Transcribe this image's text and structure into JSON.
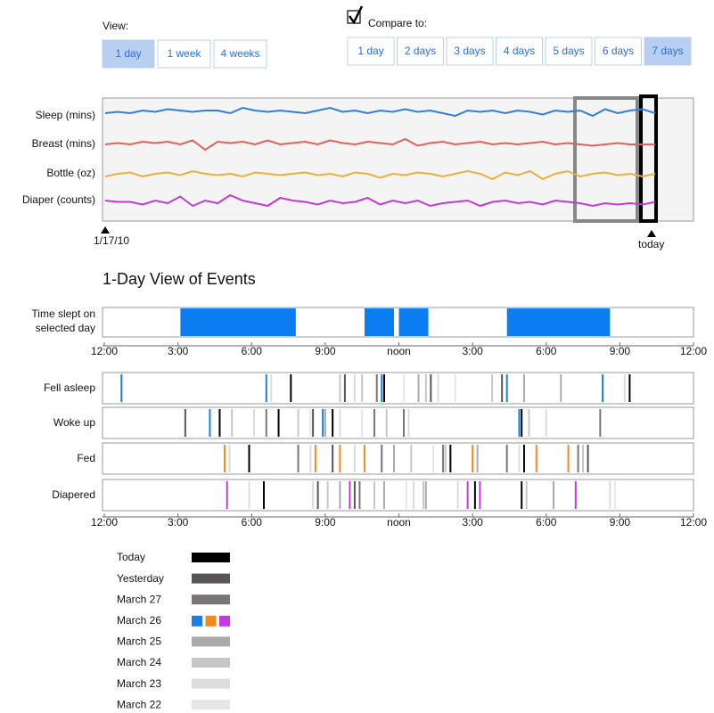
{
  "view": {
    "label": "View:",
    "options": [
      "1 day",
      "1 week",
      "4 weeks"
    ],
    "selected": 0
  },
  "compare": {
    "label": "Compare to:",
    "checked": true,
    "options": [
      "1 day",
      "2 days",
      "3 days",
      "4 days",
      "5 days",
      "6 days",
      "7 days"
    ],
    "selected": 6
  },
  "overview": {
    "ylim": [
      0,
      10
    ],
    "start_label": "1/17/10",
    "end_label": "today",
    "rows": [
      {
        "name": "Sleep (mins)",
        "color": "#2f7fdc",
        "values": [
          6,
          6.5,
          6,
          7,
          6.5,
          7.5,
          7,
          6.5,
          7,
          7,
          6,
          8,
          7,
          6.5,
          7,
          6.5,
          6,
          7,
          8,
          6.5,
          7,
          6,
          7,
          6.5,
          7.5,
          6.5,
          7,
          6,
          5,
          7,
          6.5,
          7,
          6,
          7,
          6.5,
          5.5,
          7,
          6.5,
          7,
          5,
          7.5,
          6,
          7,
          7.5,
          6
        ]
      },
      {
        "name": "Breast (mins)",
        "color": "#e0625a",
        "values": [
          5,
          5.5,
          5,
          6,
          5.5,
          6,
          5,
          6.5,
          3,
          6,
          5.5,
          6,
          5,
          6.5,
          5,
          5.5,
          6,
          5,
          6.5,
          5.5,
          5,
          6,
          5.5,
          5,
          7,
          4.5,
          5.5,
          6,
          5,
          5.5,
          6,
          5,
          5.5,
          5,
          5.5,
          6,
          5,
          5.5,
          5,
          4.5,
          5,
          5.5,
          5,
          5,
          5
        ]
      },
      {
        "name": "Bottle (oz)",
        "color": "#eab03c",
        "values": [
          4,
          5,
          5.5,
          4,
          5,
          5.5,
          4.5,
          6,
          5,
          4.5,
          5,
          4,
          5.5,
          5,
          4.5,
          5,
          5.5,
          4.5,
          5,
          4,
          5.5,
          5,
          3.5,
          5,
          4.5,
          5.5,
          5,
          4,
          5,
          6,
          5,
          3,
          5.5,
          4.5,
          6,
          3,
          5,
          6,
          4,
          5,
          5.5,
          4.5,
          5,
          4,
          5
        ]
      },
      {
        "name": "Diaper (counts)",
        "color": "#c03ad8",
        "values": [
          5,
          4.5,
          4.5,
          3.5,
          5,
          4,
          6.5,
          3,
          5,
          4,
          7,
          5,
          4,
          3,
          6,
          5,
          4.5,
          3.5,
          5,
          4,
          4.5,
          6,
          3.5,
          5,
          4,
          5,
          3,
          4,
          4.5,
          5,
          3,
          4.5,
          5,
          4,
          4.5,
          3.5,
          5,
          4.5,
          4,
          3,
          4,
          3.5,
          4,
          3.5,
          4.5
        ]
      }
    ]
  },
  "day_view": {
    "title": "1-Day View of Events",
    "sleep_label": [
      "Time slept on",
      "selected day"
    ],
    "sleep_color": "#0a7ef0",
    "sleep_blocks": [
      [
        3.1,
        7.8
      ],
      [
        10.6,
        11.8
      ],
      [
        12,
        13.2
      ],
      [
        16.4,
        20.6
      ]
    ],
    "xlim": [
      0,
      24
    ],
    "xticks": [
      {
        "value": 0,
        "label": "12:00"
      },
      {
        "value": 3,
        "label": "3:00"
      },
      {
        "value": 6,
        "label": "6:00"
      },
      {
        "value": 9,
        "label": "9:00"
      },
      {
        "value": 12,
        "label": "noon"
      },
      {
        "value": 15,
        "label": "3:00"
      },
      {
        "value": 18,
        "label": "6:00"
      },
      {
        "value": 21,
        "label": "9:00"
      },
      {
        "value": 24,
        "label": "12:00"
      }
    ],
    "event_rows": [
      {
        "name": "Fell asleep",
        "highlight": 0,
        "events": [
          [
            0.7,
            3
          ],
          [
            6.6,
            3
          ],
          [
            6.8,
            6
          ],
          [
            7.6,
            0
          ],
          [
            9.6,
            5
          ],
          [
            9.8,
            1
          ],
          [
            10.2,
            6
          ],
          [
            10.5,
            5
          ],
          [
            11.1,
            2
          ],
          [
            11.3,
            3
          ],
          [
            11.4,
            0
          ],
          [
            12.2,
            7
          ],
          [
            12.8,
            4
          ],
          [
            13.1,
            5
          ],
          [
            13.3,
            1
          ],
          [
            13.6,
            6
          ],
          [
            14.3,
            7
          ],
          [
            15.8,
            5
          ],
          [
            16.2,
            1
          ],
          [
            16.4,
            3
          ],
          [
            17.1,
            4
          ],
          [
            18.6,
            4
          ],
          [
            20.3,
            3
          ],
          [
            21.2,
            6
          ],
          [
            21.4,
            0
          ]
        ]
      },
      {
        "name": "Woke up",
        "highlight": 0,
        "events": [
          [
            3.3,
            1
          ],
          [
            4.3,
            3
          ],
          [
            4.7,
            0
          ],
          [
            5.2,
            5
          ],
          [
            6.1,
            6
          ],
          [
            6.6,
            2
          ],
          [
            7.1,
            0
          ],
          [
            7.9,
            5
          ],
          [
            8.4,
            7
          ],
          [
            8.5,
            1
          ],
          [
            8.9,
            3
          ],
          [
            9.0,
            4
          ],
          [
            9.3,
            0
          ],
          [
            9.6,
            6
          ],
          [
            10.5,
            7
          ],
          [
            11.0,
            2
          ],
          [
            11.5,
            5
          ],
          [
            12.2,
            2
          ],
          [
            12.4,
            6
          ],
          [
            16.9,
            3
          ],
          [
            17.0,
            0
          ],
          [
            17.3,
            5
          ],
          [
            18.0,
            6
          ],
          [
            20.2,
            2
          ]
        ]
      },
      {
        "name": "Fed",
        "highlight": 1,
        "events": [
          [
            4.9,
            3
          ],
          [
            5.1,
            6
          ],
          [
            5.9,
            0
          ],
          [
            7.9,
            2
          ],
          [
            8.4,
            6
          ],
          [
            8.6,
            3
          ],
          [
            9.3,
            1
          ],
          [
            9.6,
            3
          ],
          [
            10.2,
            6
          ],
          [
            10.6,
            3
          ],
          [
            11.3,
            2
          ],
          [
            11.8,
            4
          ],
          [
            12.5,
            5
          ],
          [
            13.4,
            7
          ],
          [
            13.8,
            2
          ],
          [
            13.9,
            5
          ],
          [
            14.1,
            0
          ],
          [
            15.0,
            3
          ],
          [
            15.2,
            4
          ],
          [
            16.4,
            2
          ],
          [
            16.9,
            6
          ],
          [
            17.1,
            0
          ],
          [
            17.6,
            3
          ],
          [
            18.9,
            3
          ],
          [
            19.3,
            2
          ],
          [
            19.5,
            5
          ],
          [
            19.7,
            1
          ]
        ]
      },
      {
        "name": "Diapered",
        "highlight": 2,
        "events": [
          [
            5.0,
            3
          ],
          [
            5.9,
            6
          ],
          [
            6.5,
            0
          ],
          [
            8.5,
            6
          ],
          [
            8.7,
            1
          ],
          [
            9.1,
            5
          ],
          [
            9.6,
            4
          ],
          [
            10.0,
            3
          ],
          [
            10.2,
            1
          ],
          [
            10.4,
            2
          ],
          [
            11.0,
            5
          ],
          [
            11.4,
            4
          ],
          [
            12.3,
            7
          ],
          [
            12.6,
            6
          ],
          [
            13.0,
            5
          ],
          [
            13.1,
            4
          ],
          [
            14.4,
            6
          ],
          [
            14.8,
            3
          ],
          [
            15.1,
            0
          ],
          [
            15.3,
            3
          ],
          [
            17.0,
            0
          ],
          [
            17.2,
            5
          ],
          [
            18.3,
            4
          ],
          [
            19.2,
            3
          ],
          [
            20.6,
            6
          ],
          [
            20.8,
            7
          ]
        ]
      }
    ]
  },
  "legend": [
    {
      "name": "Today",
      "color": "#000000"
    },
    {
      "name": "Yesterday",
      "color": "#5a5555"
    },
    {
      "name": "March 27",
      "color": "#7a7575"
    },
    {
      "name": "March 26",
      "colors": [
        "#1a7ee8",
        "#f38a1e",
        "#c43ae0"
      ]
    },
    {
      "name": "March 25",
      "color": "#aaaaaa"
    },
    {
      "name": "March 24",
      "color": "#c6c6c6"
    },
    {
      "name": "March 23",
      "color": "#dcdcdc"
    },
    {
      "name": "March 22",
      "color": "#e6e6e6"
    }
  ]
}
